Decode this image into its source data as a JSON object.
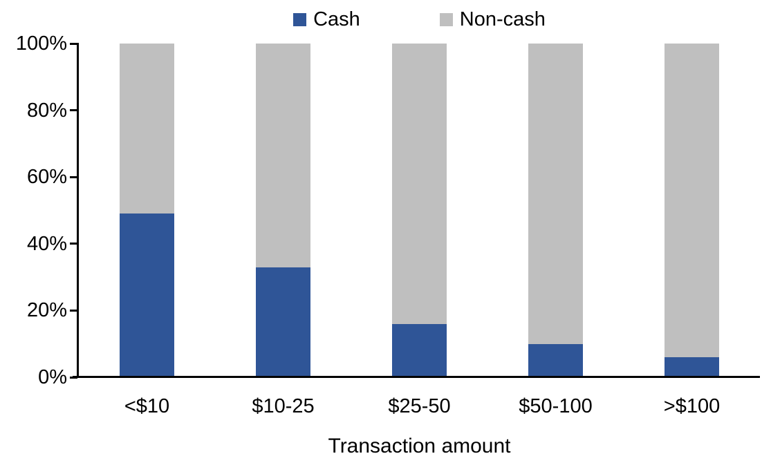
{
  "chart_data": {
    "type": "bar",
    "stacked": true,
    "stacked_100_percent": true,
    "title": "",
    "xlabel": "Transaction amount",
    "ylabel": "",
    "categories": [
      "<$10",
      "$10-25",
      "$25-50",
      "$50-100",
      ">$100"
    ],
    "series": [
      {
        "name": "Cash",
        "color": "#2F5597",
        "values": [
          49,
          33,
          16,
          10,
          6
        ]
      },
      {
        "name": "Non-cash",
        "color": "#BFBFBF",
        "values": [
          51,
          67,
          84,
          90,
          94
        ]
      }
    ],
    "ylim": [
      0,
      100
    ],
    "y_ticks": [
      0,
      20,
      40,
      60,
      80,
      100
    ],
    "y_tick_format": "{v}%",
    "legend_position": "top-center",
    "grid": false,
    "colors": {
      "axis": "#000000",
      "text": "#000000",
      "background": "#FFFFFF"
    }
  }
}
